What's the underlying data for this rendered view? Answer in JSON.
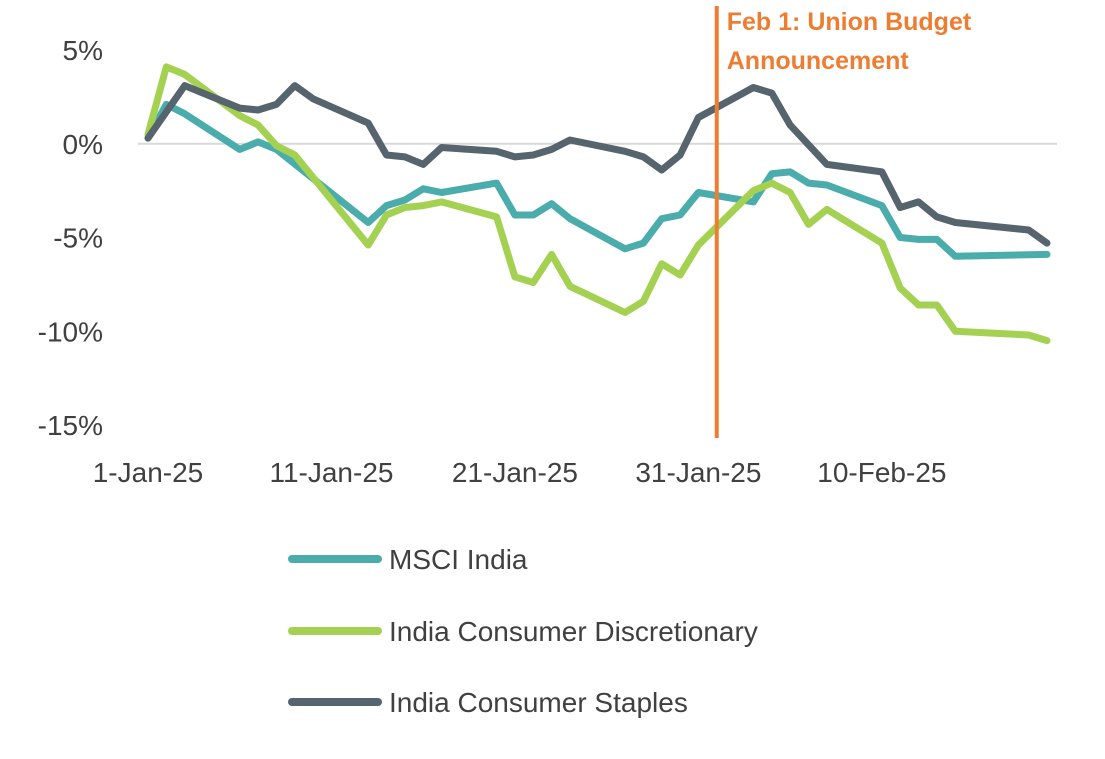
{
  "chart_data": {
    "type": "line",
    "title": "",
    "xlabel": "",
    "ylabel": "",
    "x_start": "2025-01-01",
    "x_end": "2025-02-19",
    "x_ticks": [
      {
        "date": "2025-01-01",
        "label": "1-Jan-25"
      },
      {
        "date": "2025-01-11",
        "label": "11-Jan-25"
      },
      {
        "date": "2025-01-21",
        "label": "21-Jan-25"
      },
      {
        "date": "2025-01-31",
        "label": "31-Jan-25"
      },
      {
        "date": "2025-02-10",
        "label": "10-Feb-25"
      }
    ],
    "ylim": [
      -15,
      5
    ],
    "y_ticks": [
      {
        "value": 5,
        "label": "5%"
      },
      {
        "value": 0,
        "label": "0%"
      },
      {
        "value": -5,
        "label": "-5%"
      },
      {
        "value": -10,
        "label": "-10%"
      },
      {
        "value": -15,
        "label": "-15%"
      }
    ],
    "grid": false,
    "zero_line": true,
    "legend_position": "bottom",
    "annotation": {
      "date": "2025-02-01",
      "line1": "Feb 1: Union Budget",
      "line2": "Announcement",
      "color": "#ED7D31"
    },
    "series": [
      {
        "name": "MSCI India",
        "color": "#4BACAC",
        "points": [
          [
            "2025-01-01",
            0.3
          ],
          [
            "2025-01-02",
            2.1
          ],
          [
            "2025-01-03",
            1.6
          ],
          [
            "2025-01-06",
            -0.3
          ],
          [
            "2025-01-07",
            0.1
          ],
          [
            "2025-01-08",
            -0.3
          ],
          [
            "2025-01-13",
            -4.2
          ],
          [
            "2025-01-14",
            -3.3
          ],
          [
            "2025-01-15",
            -3.0
          ],
          [
            "2025-01-16",
            -2.4
          ],
          [
            "2025-01-17",
            -2.6
          ],
          [
            "2025-01-20",
            -2.1
          ],
          [
            "2025-01-21",
            -3.8
          ],
          [
            "2025-01-22",
            -3.8
          ],
          [
            "2025-01-23",
            -3.2
          ],
          [
            "2025-01-24",
            -4.0
          ],
          [
            "2025-01-27",
            -5.6
          ],
          [
            "2025-01-28",
            -5.3
          ],
          [
            "2025-01-29",
            -4.0
          ],
          [
            "2025-01-30",
            -3.8
          ],
          [
            "2025-01-31",
            -2.6
          ],
          [
            "2025-02-03",
            -3.1
          ],
          [
            "2025-02-04",
            -1.6
          ],
          [
            "2025-02-05",
            -1.5
          ],
          [
            "2025-02-06",
            -2.1
          ],
          [
            "2025-02-07",
            -2.2
          ],
          [
            "2025-02-10",
            -3.3
          ],
          [
            "2025-02-11",
            -5.0
          ],
          [
            "2025-02-12",
            -5.1
          ],
          [
            "2025-02-13",
            -5.1
          ],
          [
            "2025-02-14",
            -6.0
          ],
          [
            "2025-02-19",
            -5.9
          ]
        ]
      },
      {
        "name": "India Consumer Discretionary",
        "color": "#A5D152",
        "points": [
          [
            "2025-01-01",
            0.5
          ],
          [
            "2025-01-02",
            4.1
          ],
          [
            "2025-01-03",
            3.7
          ],
          [
            "2025-01-06",
            1.5
          ],
          [
            "2025-01-07",
            1.0
          ],
          [
            "2025-01-08",
            -0.1
          ],
          [
            "2025-01-09",
            -0.6
          ],
          [
            "2025-01-13",
            -5.4
          ],
          [
            "2025-01-14",
            -3.8
          ],
          [
            "2025-01-15",
            -3.4
          ],
          [
            "2025-01-16",
            -3.3
          ],
          [
            "2025-01-17",
            -3.1
          ],
          [
            "2025-01-20",
            -3.9
          ],
          [
            "2025-01-21",
            -7.1
          ],
          [
            "2025-01-22",
            -7.4
          ],
          [
            "2025-01-23",
            -5.9
          ],
          [
            "2025-01-24",
            -7.6
          ],
          [
            "2025-01-27",
            -9.0
          ],
          [
            "2025-01-28",
            -8.4
          ],
          [
            "2025-01-29",
            -6.4
          ],
          [
            "2025-01-30",
            -7.0
          ],
          [
            "2025-01-31",
            -5.4
          ],
          [
            "2025-02-03",
            -2.5
          ],
          [
            "2025-02-04",
            -2.1
          ],
          [
            "2025-02-05",
            -2.6
          ],
          [
            "2025-02-06",
            -4.3
          ],
          [
            "2025-02-07",
            -3.5
          ],
          [
            "2025-02-10",
            -5.3
          ],
          [
            "2025-02-11",
            -7.7
          ],
          [
            "2025-02-12",
            -8.6
          ],
          [
            "2025-02-13",
            -8.6
          ],
          [
            "2025-02-14",
            -10.0
          ],
          [
            "2025-02-18",
            -10.2
          ],
          [
            "2025-02-19",
            -10.5
          ]
        ]
      },
      {
        "name": "India Consumer Staples",
        "color": "#56646E",
        "points": [
          [
            "2025-01-01",
            0.3
          ],
          [
            "2025-01-03",
            3.1
          ],
          [
            "2025-01-06",
            1.9
          ],
          [
            "2025-01-07",
            1.8
          ],
          [
            "2025-01-08",
            2.1
          ],
          [
            "2025-01-09",
            3.1
          ],
          [
            "2025-01-10",
            2.4
          ],
          [
            "2025-01-13",
            1.1
          ],
          [
            "2025-01-14",
            -0.6
          ],
          [
            "2025-01-15",
            -0.7
          ],
          [
            "2025-01-16",
            -1.1
          ],
          [
            "2025-01-17",
            -0.2
          ],
          [
            "2025-01-20",
            -0.4
          ],
          [
            "2025-01-21",
            -0.7
          ],
          [
            "2025-01-22",
            -0.6
          ],
          [
            "2025-01-23",
            -0.3
          ],
          [
            "2025-01-24",
            0.2
          ],
          [
            "2025-01-27",
            -0.4
          ],
          [
            "2025-01-28",
            -0.7
          ],
          [
            "2025-01-29",
            -1.4
          ],
          [
            "2025-01-30",
            -0.6
          ],
          [
            "2025-01-31",
            1.4
          ],
          [
            "2025-02-03",
            3.0
          ],
          [
            "2025-02-04",
            2.7
          ],
          [
            "2025-02-05",
            1.0
          ],
          [
            "2025-02-07",
            -1.1
          ],
          [
            "2025-02-10",
            -1.5
          ],
          [
            "2025-02-11",
            -3.4
          ],
          [
            "2025-02-12",
            -3.1
          ],
          [
            "2025-02-13",
            -3.9
          ],
          [
            "2025-02-14",
            -4.2
          ],
          [
            "2025-02-18",
            -4.6
          ],
          [
            "2025-02-19",
            -5.3
          ]
        ]
      }
    ]
  }
}
